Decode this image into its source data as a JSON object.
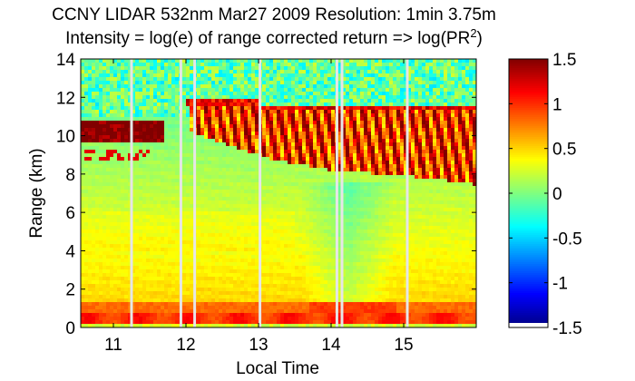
{
  "chart_data": {
    "type": "heatmap",
    "title_line1": "CCNY LIDAR 532nm Mar27 2009 Resolution: 1min 3.75m",
    "title_line2": {
      "before": "Intensity = log(e) of range corrected return => log(PR",
      "sup": "2",
      "after": ")"
    },
    "xlabel": "Local Time",
    "ylabel": "Range (km)",
    "xlim": [
      10.55,
      16.0
    ],
    "ylim": [
      0,
      14
    ],
    "xticks": [
      11,
      12,
      13,
      14,
      15
    ],
    "xtick_labels": [
      "11",
      "12",
      "13",
      "14",
      "15"
    ],
    "yticks": [
      0,
      2,
      4,
      6,
      8,
      10,
      12,
      14
    ],
    "ytick_labels": [
      "0",
      "2",
      "4",
      "6",
      "8",
      "10",
      "12",
      "14"
    ],
    "colorbar": {
      "colormap": "jet",
      "clim": [
        -1.5,
        1.5
      ],
      "ticks": [
        1.5,
        1,
        0.5,
        0,
        -0.5,
        -1,
        -1.5
      ],
      "tick_labels": [
        "1.5",
        "1",
        "0.5",
        "0",
        "-0.5",
        "-1",
        "-1.5"
      ]
    },
    "data_gaps_local_time": [
      11.25,
      11.93,
      12.12,
      13.02,
      14.08,
      14.15,
      15.05
    ],
    "features": {
      "boundary_layer_top_km": 1.3,
      "cirrus_layer_km": [
        7.3,
        11.3
      ],
      "noisy_region_above_km": 11
    }
  }
}
